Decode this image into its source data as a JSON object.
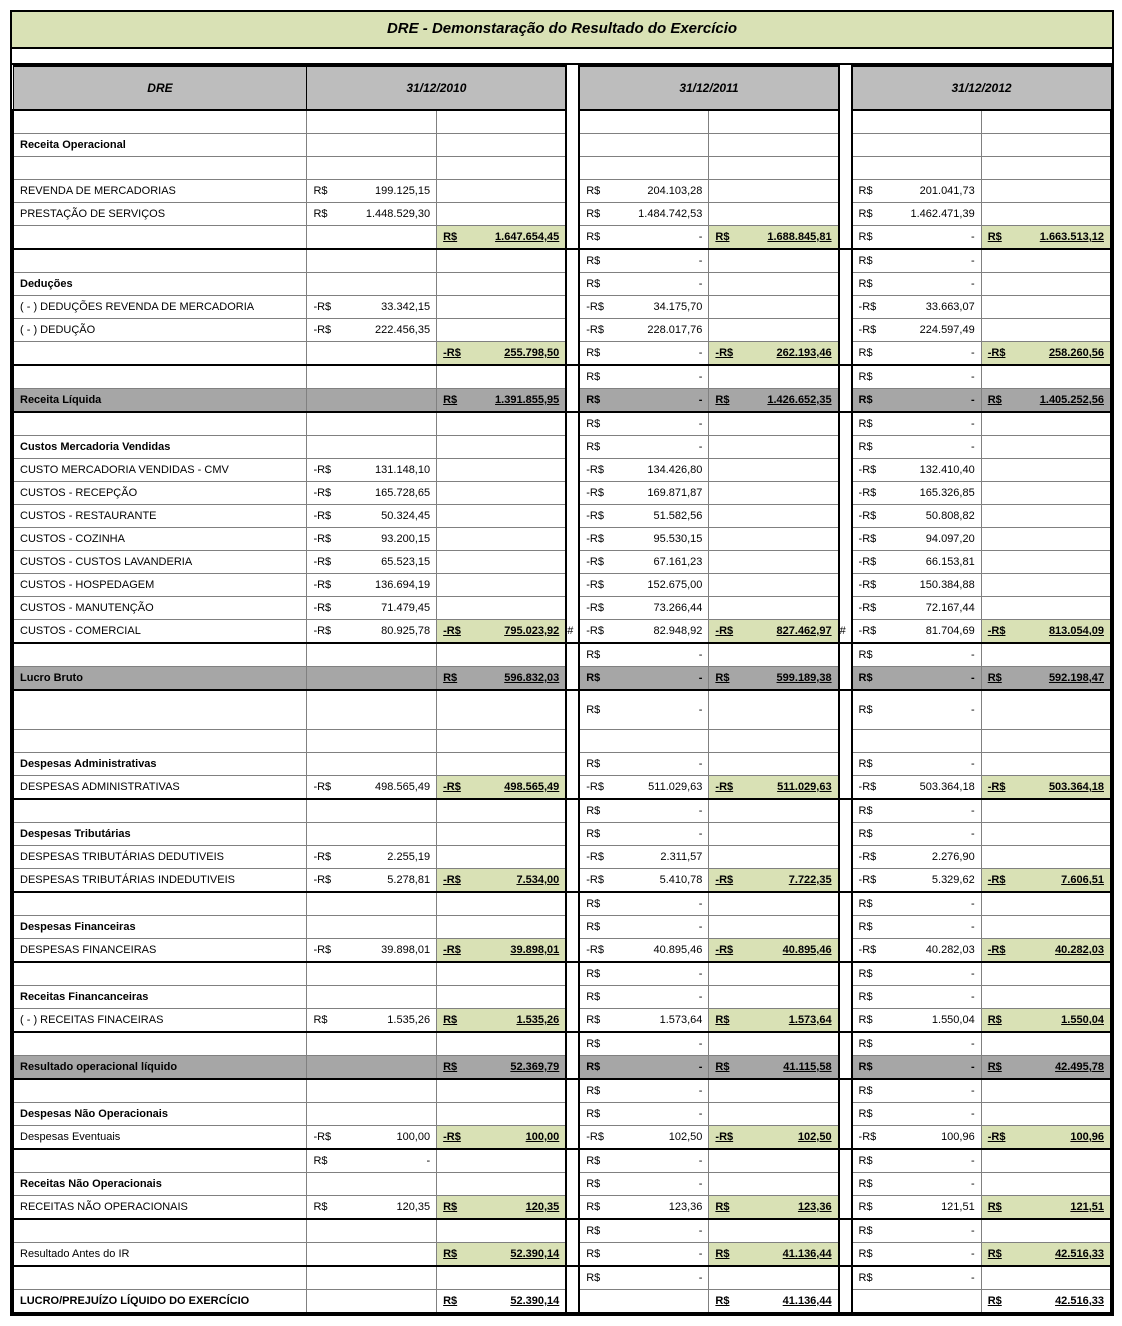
{
  "title": "DRE - Demonstaração do Resultado do Exercício",
  "header": {
    "label": "DRE",
    "periods": [
      "31/12/2010",
      "31/12/2011",
      "31/12/2012"
    ]
  },
  "colors": {
    "green_bg": "#d9e1b5",
    "gray_bg": "#a6a6a6",
    "gray_header": "#bdbdbd",
    "grid": "#808080",
    "border": "#000000"
  },
  "currency": "R$",
  "dash": "-",
  "hash": "#",
  "rows": [
    {
      "t": "blank"
    },
    {
      "t": "section",
      "label": "Receita Operacional"
    },
    {
      "t": "blank"
    },
    {
      "t": "detail",
      "label": "REVENDA DE MERCADORIAS",
      "v1": "199.125,15",
      "v2": "204.103,28",
      "v3": "201.041,73"
    },
    {
      "t": "detail",
      "label": "PRESTAÇÃO DE SERVIÇOS",
      "v1": "1.448.529,30",
      "v2": "1.484.742,53",
      "v3": "1.462.471,39"
    },
    {
      "t": "subtotal",
      "s1": "1.647.654,45",
      "s2": "1.688.845,81",
      "s3": "1.663.513,12",
      "d2": true,
      "d3": true,
      "neg": false,
      "green": true,
      "boldline": true
    },
    {
      "t": "dash23"
    },
    {
      "t": "section",
      "label": "Deduções",
      "dash23": true
    },
    {
      "t": "detail",
      "label": "( - ) DEDUÇÕES REVENDA DE MERCADORIA",
      "v1": "33.342,15",
      "v2": "34.175,70",
      "v3": "33.663,07",
      "neg": true
    },
    {
      "t": "detail",
      "label": "( - ) DEDUÇÃO",
      "v1": "222.456,35",
      "v2": "228.017,76",
      "v3": "224.597,49",
      "neg": true
    },
    {
      "t": "subtotal",
      "s1": "255.798,50",
      "s2": "262.193,46",
      "s3": "258.260,56",
      "d2": true,
      "d3": true,
      "neg": true,
      "green": true,
      "boldline": true
    },
    {
      "t": "dash23"
    },
    {
      "t": "gray",
      "label": "Receita Líquida",
      "s1": "1.391.855,95",
      "s2": "1.426.652,35",
      "s3": "1.405.252,56",
      "d2": true,
      "d3": true,
      "boldline": true
    },
    {
      "t": "dash23"
    },
    {
      "t": "section",
      "label": "Custos Mercadoria Vendidas",
      "dash23": true
    },
    {
      "t": "detail",
      "label": "CUSTO MERCADORIA VENDIDAS - CMV",
      "v1": "131.148,10",
      "v2": "134.426,80",
      "v3": "132.410,40",
      "neg": true
    },
    {
      "t": "detail",
      "label": "CUSTOS - RECEPÇÃO",
      "v1": "165.728,65",
      "v2": "169.871,87",
      "v3": "165.326,85",
      "neg": true
    },
    {
      "t": "detail",
      "label": "CUSTOS - RESTAURANTE",
      "v1": "50.324,45",
      "v2": "51.582,56",
      "v3": "50.808,82",
      "neg": true
    },
    {
      "t": "detail",
      "label": "CUSTOS - COZINHA",
      "v1": "93.200,15",
      "v2": "95.530,15",
      "v3": "94.097,20",
      "neg": true
    },
    {
      "t": "detail",
      "label": "CUSTOS - CUSTOS LAVANDERIA",
      "v1": "65.523,15",
      "v2": "67.161,23",
      "v3": "66.153,81",
      "neg": true
    },
    {
      "t": "detail",
      "label": "CUSTOS - HOSPEDAGEM",
      "v1": "136.694,19",
      "v2": "152.675,00",
      "v3": "150.384,88",
      "neg": true
    },
    {
      "t": "detail",
      "label": "CUSTOS - MANUTENÇÃO",
      "v1": "71.479,45",
      "v2": "73.266,44",
      "v3": "72.167,44",
      "neg": true
    },
    {
      "t": "detail_sub",
      "label": "CUSTOS - COMERCIAL",
      "v1": "80.925,78",
      "v2": "82.948,92",
      "v3": "81.704,69",
      "neg": true,
      "s1": "795.023,92",
      "s2": "827.462,97",
      "s3": "813.054,09",
      "sneg": true,
      "green": true,
      "hash12": true,
      "hash23": true,
      "boldline": true
    },
    {
      "t": "dash23"
    },
    {
      "t": "gray",
      "label": "Lucro Bruto",
      "s1": "596.832,03",
      "s2": "599.189,38",
      "s3": "592.198,47",
      "d2": true,
      "d3": true,
      "boldline": true
    },
    {
      "t": "tall_dash23"
    },
    {
      "t": "blank"
    },
    {
      "t": "section",
      "label": "Despesas Administrativas",
      "dash23": true
    },
    {
      "t": "detail_sub",
      "label": "DESPESAS ADMINISTRATIVAS",
      "v1": "498.565,49",
      "v2": "511.029,63",
      "v3": "503.364,18",
      "neg": true,
      "s1": "498.565,49",
      "s2": "511.029,63",
      "s3": "503.364,18",
      "sneg": true,
      "green": true,
      "boldline": true
    },
    {
      "t": "dash23"
    },
    {
      "t": "section",
      "label": "Despesas Tributárias",
      "dash23": true
    },
    {
      "t": "detail",
      "label": "DESPESAS TRIBUTÁRIAS DEDUTIVEIS",
      "v1": "2.255,19",
      "v2": "2.311,57",
      "v3": "2.276,90",
      "neg": true
    },
    {
      "t": "detail_sub",
      "label": "DESPESAS TRIBUTÁRIAS INDEDUTIVEIS",
      "v1": "5.278,81",
      "v2": "5.410,78",
      "v3": "5.329,62",
      "neg": true,
      "s1": "7.534,00",
      "s2": "7.722,35",
      "s3": "7.606,51",
      "sneg": true,
      "green": true,
      "boldline": true
    },
    {
      "t": "dash23"
    },
    {
      "t": "section",
      "label": "Despesas Financeiras",
      "dash23": true
    },
    {
      "t": "detail_sub",
      "label": "DESPESAS FINANCEIRAS",
      "v1": "39.898,01",
      "v2": "40.895,46",
      "v3": "40.282,03",
      "neg": true,
      "s1": "39.898,01",
      "s2": "40.895,46",
      "s3": "40.282,03",
      "sneg": true,
      "green": true,
      "boldline": true
    },
    {
      "t": "dash23"
    },
    {
      "t": "section",
      "label": "Receitas Financanceiras",
      "dash23": true
    },
    {
      "t": "detail_sub",
      "label": "( - ) RECEITAS FINACEIRAS",
      "v1": "1.535,26",
      "v2": "1.573,64",
      "v3": "1.550,04",
      "neg": false,
      "s1": "1.535,26",
      "s2": "1.573,64",
      "s3": "1.550,04",
      "sneg": false,
      "green": true,
      "boldline": true
    },
    {
      "t": "dash23"
    },
    {
      "t": "gray",
      "label": "Resultado operacional líquido",
      "s1": "52.369,79",
      "s2": "41.115,58",
      "s3": "42.495,78",
      "d2": true,
      "d3": true,
      "boldline": true
    },
    {
      "t": "dash23"
    },
    {
      "t": "section",
      "label": "Despesas Não Operacionais",
      "dash23": true
    },
    {
      "t": "detail_sub",
      "label": "Despesas Eventuais",
      "v1": "100,00",
      "v2": "102,50",
      "v3": "100,96",
      "neg": true,
      "s1": "100,00",
      "s2": "102,50",
      "s3": "100,96",
      "sneg": true,
      "green": true,
      "boldline": true
    },
    {
      "t": "dashAll"
    },
    {
      "t": "section",
      "label": "Receitas Não Operacionais",
      "dash23": true
    },
    {
      "t": "detail_sub",
      "label": "RECEITAS NÃO OPERACIONAIS",
      "v1": "120,35",
      "v2": "123,36",
      "v3": "121,51",
      "neg": false,
      "s1": "120,35",
      "s2": "123,36",
      "s3": "121,51",
      "sneg": false,
      "green": true,
      "boldline": true
    },
    {
      "t": "dash23"
    },
    {
      "t": "subtotal_plain",
      "label": "Resultado Antes do IR",
      "s1": "52.390,14",
      "s2": "41.136,44",
      "s3": "42.516,33",
      "d2": true,
      "d3": true,
      "green": true,
      "boldline": true
    },
    {
      "t": "dash23"
    },
    {
      "t": "final",
      "label": "LUCRO/PREJUÍZO LÍQUIDO DO EXERCÍCIO",
      "s1": "52.390,14",
      "s2": "41.136,44",
      "s3": "42.516,33",
      "boldline": true
    }
  ]
}
